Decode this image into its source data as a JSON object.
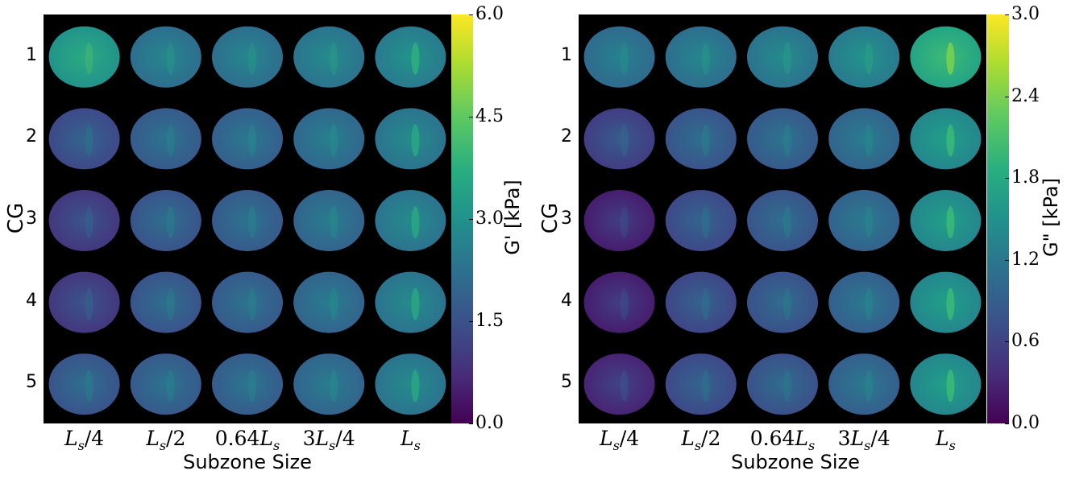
{
  "panels": [
    {
      "id": "storage",
      "colorbar": {
        "label": "G' [kPa]",
        "ticks": [
          "0.0",
          "1.5",
          "3.0",
          "4.5",
          "6.0"
        ],
        "range": [
          0,
          6
        ],
        "colormap": "viridis"
      },
      "x_title": "Subzone Size",
      "y_title": "CG",
      "rows": [
        "1",
        "2",
        "3",
        "4",
        "5"
      ],
      "cols": [
        {
          "main": "L",
          "sub": "s",
          "rest": "/4"
        },
        {
          "main": "L",
          "sub": "s",
          "rest": "/2"
        },
        {
          "pre": "0.64",
          "main": "L",
          "sub": "s",
          "rest": ""
        },
        {
          "pre": "3",
          "main": "L",
          "sub": "s",
          "rest": "/4"
        },
        {
          "main": "L",
          "sub": "s",
          "rest": ""
        }
      ],
      "levels": [
        [
          0.55,
          0.4,
          0.4,
          0.42,
          0.45
        ],
        [
          0.26,
          0.32,
          0.34,
          0.37,
          0.42
        ],
        [
          0.2,
          0.3,
          0.32,
          0.36,
          0.42
        ],
        [
          0.2,
          0.3,
          0.32,
          0.36,
          0.42
        ],
        [
          0.3,
          0.32,
          0.33,
          0.36,
          0.42
        ]
      ]
    },
    {
      "id": "loss",
      "colorbar": {
        "label": "G\" [kPa]",
        "ticks": [
          "0.0",
          "0.6",
          "1.2",
          "1.8",
          "2.4",
          "3.0"
        ],
        "range": [
          0,
          3
        ],
        "colormap": "viridis"
      },
      "x_title": "Subzone Size",
      "y_title": "CG",
      "rows": [
        "1",
        "2",
        "3",
        "4",
        "5"
      ],
      "cols": [
        {
          "main": "L",
          "sub": "s",
          "rest": "/4"
        },
        {
          "main": "L",
          "sub": "s",
          "rest": "/2"
        },
        {
          "pre": "0.64",
          "main": "L",
          "sub": "s",
          "rest": ""
        },
        {
          "pre": "3",
          "main": "L",
          "sub": "s",
          "rest": "/4"
        },
        {
          "main": "L",
          "sub": "s",
          "rest": ""
        }
      ],
      "levels": [
        [
          0.38,
          0.4,
          0.42,
          0.45,
          0.62
        ],
        [
          0.22,
          0.3,
          0.32,
          0.36,
          0.5
        ],
        [
          0.12,
          0.26,
          0.3,
          0.35,
          0.5
        ],
        [
          0.12,
          0.25,
          0.29,
          0.34,
          0.5
        ],
        [
          0.14,
          0.26,
          0.29,
          0.34,
          0.5
        ]
      ]
    }
  ]
}
